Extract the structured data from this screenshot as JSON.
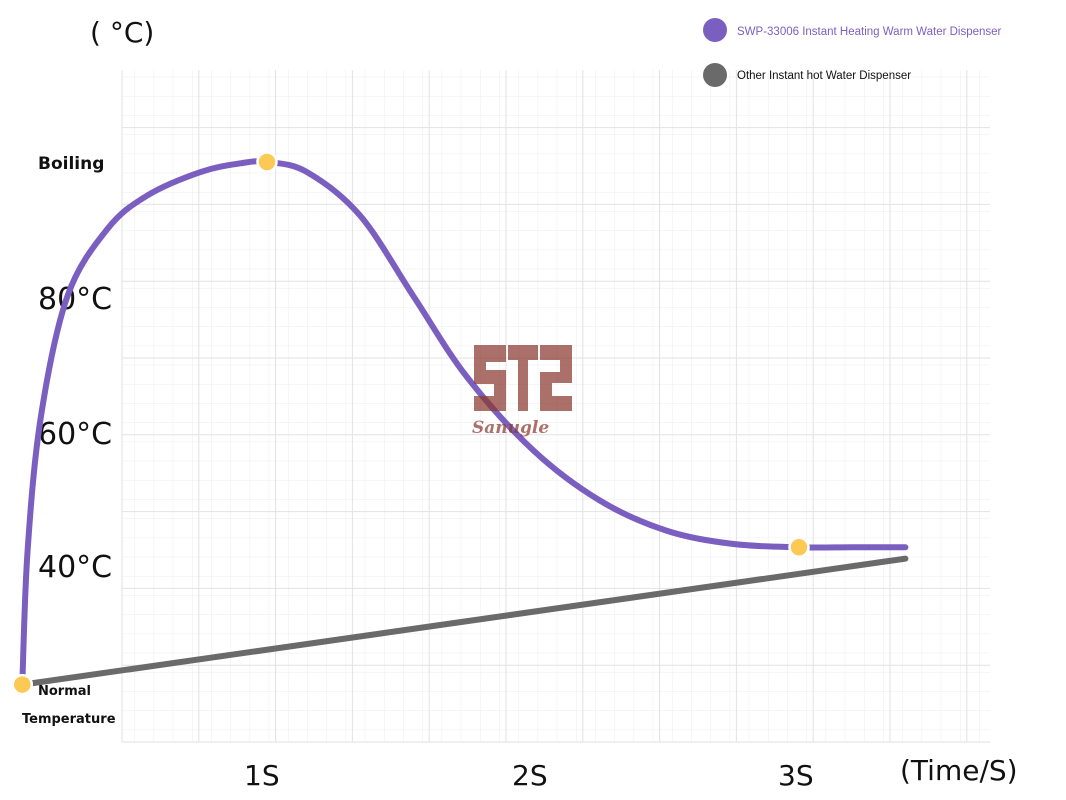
{
  "chart_data": {
    "type": "line",
    "ylabel": "( °C)",
    "xlabel": "(Time/S)",
    "x_ticks": [
      {
        "label": "1S",
        "value": 1
      },
      {
        "label": "2S",
        "value": 2
      },
      {
        "label": "3S",
        "value": 3
      }
    ],
    "y_ticks": [
      {
        "label": "Boiling",
        "value": 100
      },
      {
        "label": "80°C",
        "value": 80
      },
      {
        "label": "60°C",
        "value": 60
      },
      {
        "label": "40°C",
        "value": 40
      }
    ],
    "y_bottom_label": [
      "Normal",
      "Temperature"
    ],
    "y_bottom_value": 22,
    "xlim": [
      0,
      3.5
    ],
    "ylim": [
      14,
      115
    ],
    "grid": true,
    "legend_position": "top-right",
    "series": [
      {
        "name": "SWP-33006 Instant Heating Warm Water Dispenser",
        "color": "#7b5fc0",
        "x": [
          0.08,
          0.1,
          0.15,
          0.25,
          0.4,
          0.55,
          0.75,
          0.9,
          1.0,
          1.15,
          1.35,
          1.55,
          1.75,
          2.0,
          2.25,
          2.5,
          2.75,
          3.0,
          3.2,
          3.4
        ],
        "y": [
          22,
          42,
          62,
          80,
          90,
          95,
          98.5,
          99.8,
          100,
          98.5,
          92,
          80,
          68,
          57,
          49.5,
          45,
          43,
          42.5,
          42.5,
          42.5
        ],
        "markers": [
          [
            0.08,
            22
          ],
          [
            1.0,
            100
          ],
          [
            3.0,
            42.5
          ]
        ]
      },
      {
        "name": "Other Instant hot Water Dispenser",
        "color": "#6a6a6a",
        "x": [
          0.08,
          3.4
        ],
        "y": [
          22,
          40.8
        ]
      }
    ],
    "marker_color": "#fbc954"
  },
  "watermark": {
    "text": "Sanugle",
    "color": "#8b3a30"
  }
}
